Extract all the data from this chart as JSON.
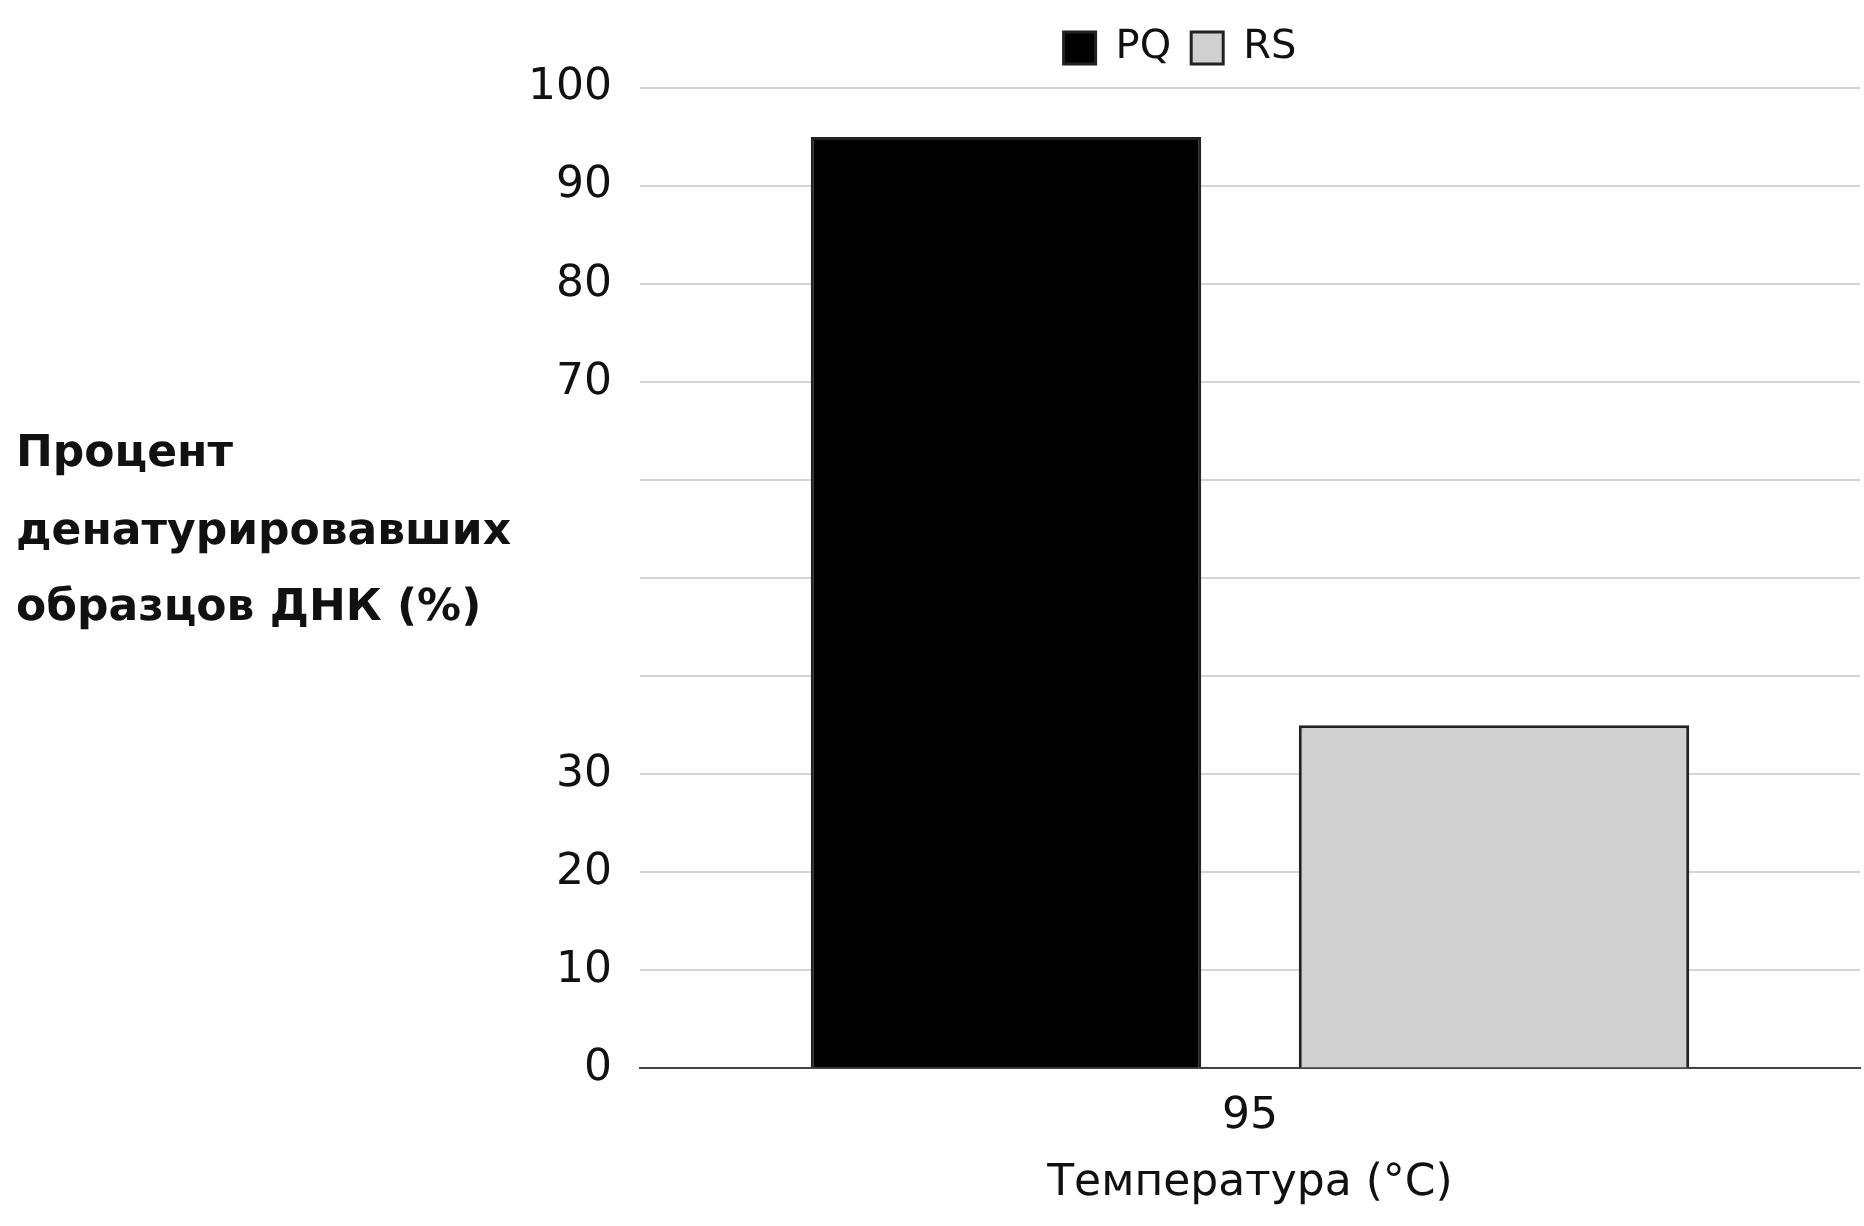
{
  "chart_data": {
    "type": "bar",
    "ylabel": "Процент денатурировавших образцов ДНК (%)",
    "xlabel": "Температура (°C)",
    "categories": [
      "95"
    ],
    "series": [
      {
        "name": "PQ",
        "color": "#000000",
        "values": [
          95
        ]
      },
      {
        "name": "RS",
        "color": "#d0d0d0",
        "values": [
          35
        ]
      }
    ],
    "ylim": [
      0,
      100
    ],
    "yticks": [
      0,
      10,
      20,
      30,
      {
        "value": 40,
        "label": null
      },
      {
        "value": 50,
        "label": null
      },
      {
        "value": 60,
        "label": null
      },
      70,
      80,
      90,
      100
    ],
    "grid": "y",
    "legend": "top"
  }
}
